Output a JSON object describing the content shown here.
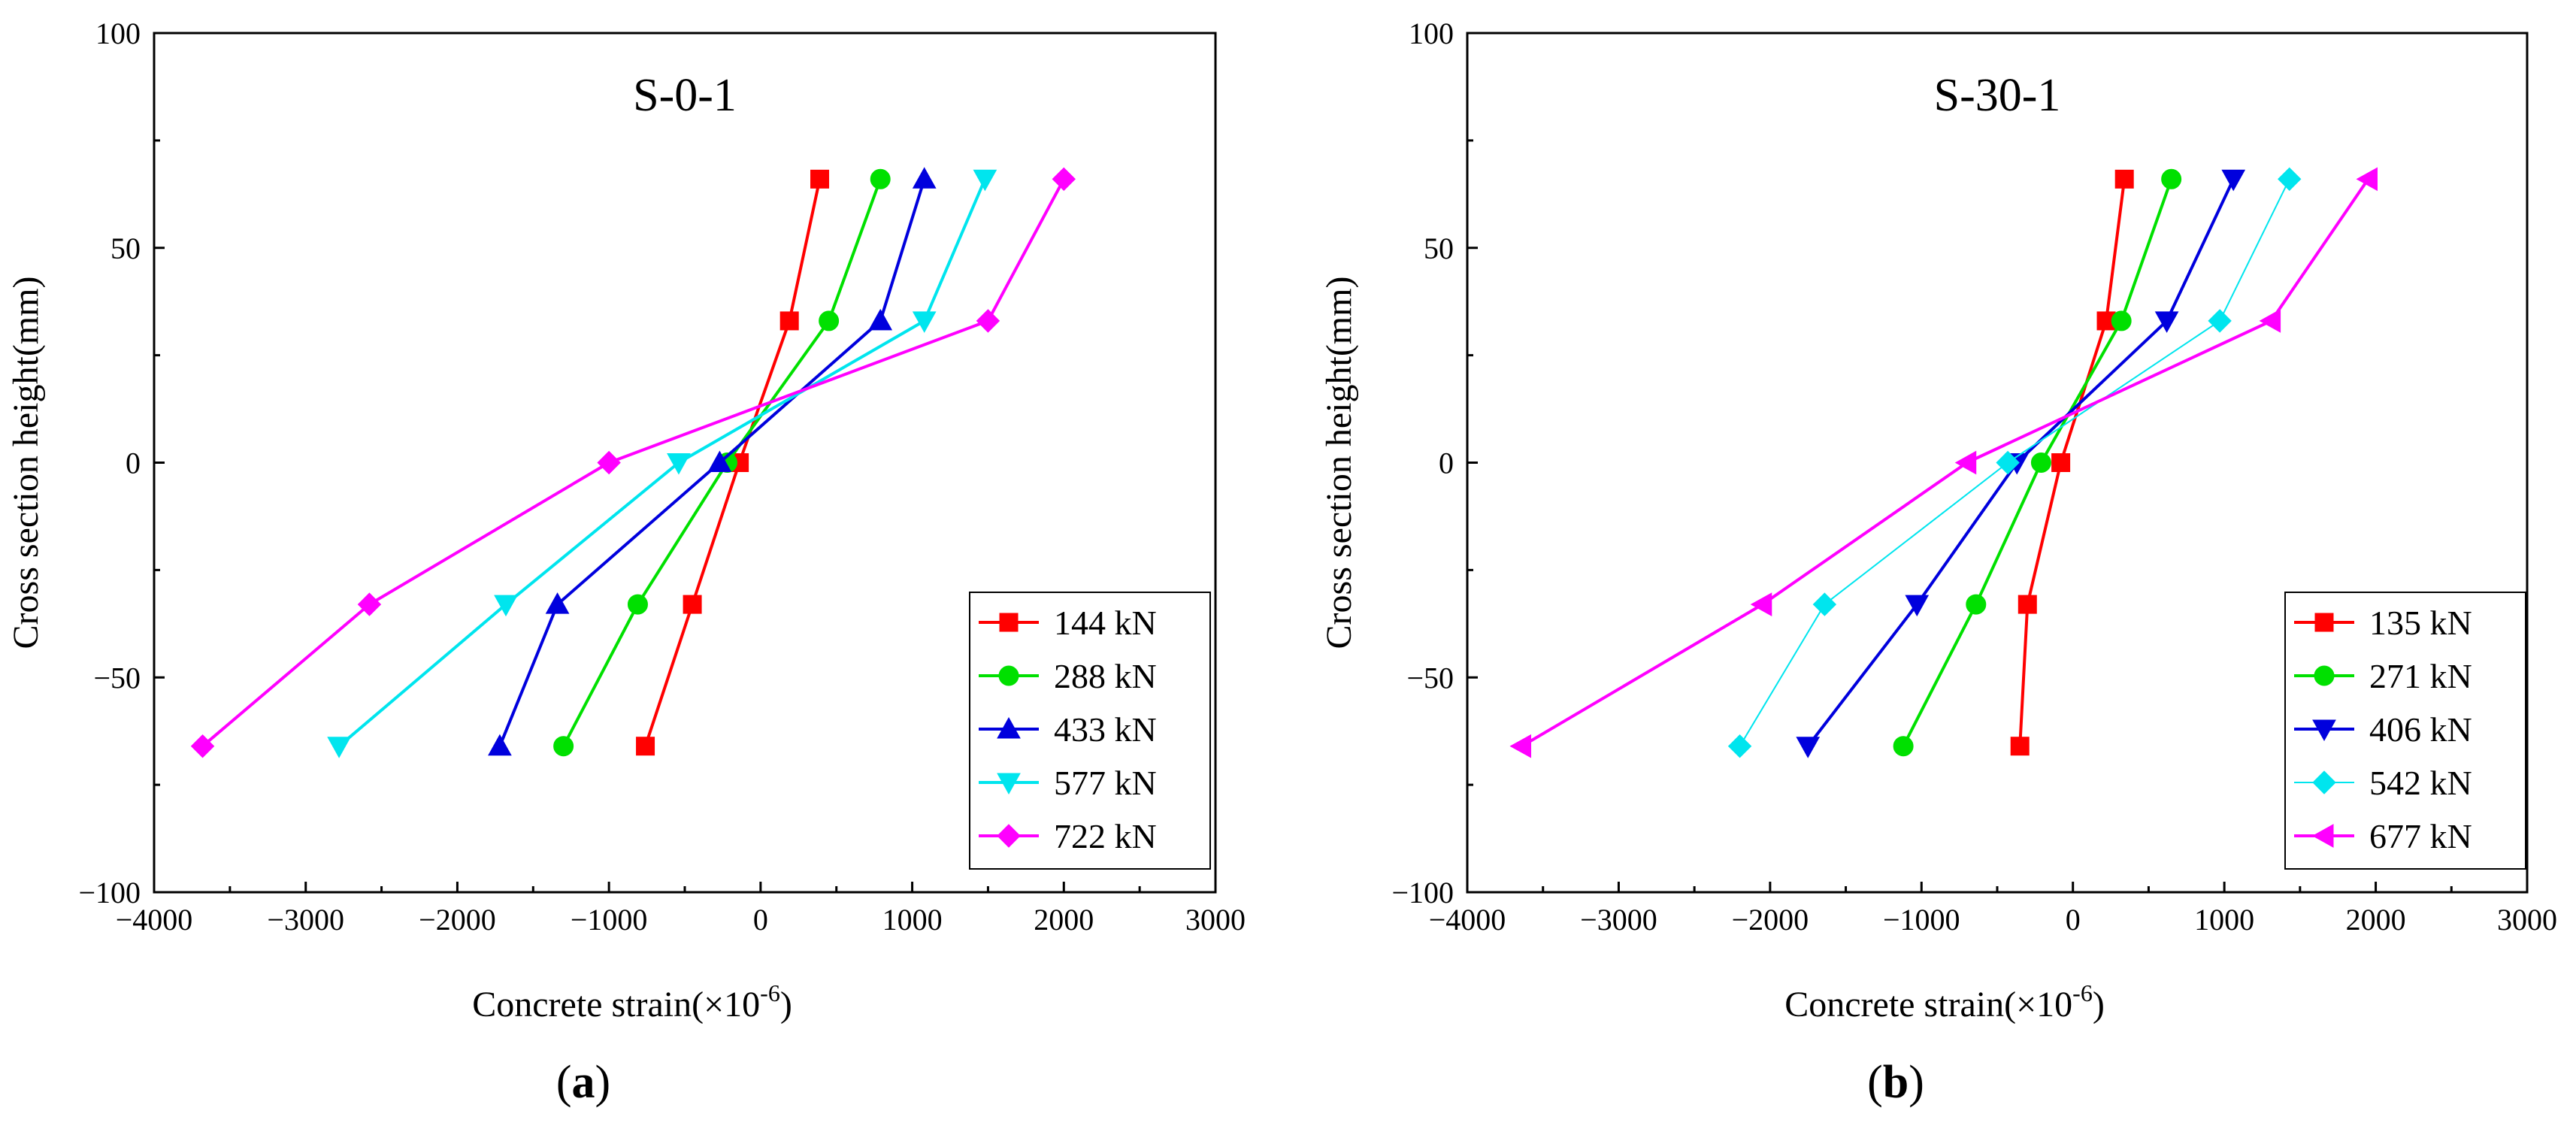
{
  "chart_data": [
    {
      "type": "line",
      "title": "S-0-1",
      "panel_label_open": "(",
      "panel_label_letter": "a",
      "panel_label_close": ")",
      "xlabel": "Concrete strain(×10",
      "xlabel_exponent": "-6",
      "xlabel_close": ")",
      "ylabel": "Cross section height(mm)",
      "xlim": [
        -4000,
        3000
      ],
      "ylim": [
        -100,
        100
      ],
      "xticks": [
        -4000,
        -3000,
        -2000,
        -1000,
        0,
        1000,
        2000,
        3000
      ],
      "yticks": [
        -100,
        -50,
        0,
        50,
        100
      ],
      "y": [
        66,
        33,
        0,
        -33,
        -66
      ],
      "legend_position": "bottom-right",
      "series": [
        {
          "name": "144 kN",
          "color": "#ff0000",
          "marker": "square",
          "x": [
            390,
            190,
            -140,
            -450,
            -760
          ],
          "thin": false
        },
        {
          "name": "288 kN",
          "color": "#00e000",
          "marker": "circle",
          "x": [
            790,
            450,
            -220,
            -810,
            -1300
          ],
          "thin": false
        },
        {
          "name": "433 kN",
          "color": "#0000dd",
          "marker": "triangle-up",
          "x": [
            1080,
            790,
            -270,
            -1340,
            -1720
          ],
          "thin": false
        },
        {
          "name": "577 kN",
          "color": "#00e5ee",
          "marker": "triangle-down",
          "x": [
            1480,
            1080,
            -540,
            -1680,
            -2780
          ],
          "thin": false
        },
        {
          "name": "722 kN",
          "color": "#ff00ff",
          "marker": "diamond",
          "x": [
            2000,
            1500,
            -1000,
            -2580,
            -3680
          ],
          "thin": false
        }
      ]
    },
    {
      "type": "line",
      "title": "S-30-1",
      "panel_label_open": "(",
      "panel_label_letter": "b",
      "panel_label_close": ")",
      "xlabel": "Concrete strain(×10",
      "xlabel_exponent": "-6",
      "xlabel_close": ")",
      "ylabel": "Cross section height(mm)",
      "xlim": [
        -4000,
        3000
      ],
      "ylim": [
        -100,
        100
      ],
      "xticks": [
        -4000,
        -3000,
        -2000,
        -1000,
        0,
        1000,
        2000,
        3000
      ],
      "yticks": [
        -100,
        -50,
        0,
        50,
        100
      ],
      "y": [
        66,
        33,
        0,
        -33,
        -66
      ],
      "legend_position": "bottom-right",
      "series": [
        {
          "name": "135 kN",
          "color": "#ff0000",
          "marker": "square",
          "x": [
            340,
            220,
            -80,
            -300,
            -350
          ],
          "thin": false
        },
        {
          "name": "271 kN",
          "color": "#00e000",
          "marker": "circle",
          "x": [
            650,
            320,
            -210,
            -640,
            -1120
          ],
          "thin": false
        },
        {
          "name": "406 kN",
          "color": "#0000dd",
          "marker": "triangle-down",
          "x": [
            1060,
            620,
            -370,
            -1030,
            -1750
          ],
          "thin": false
        },
        {
          "name": "542 kN",
          "color": "#00e5ee",
          "marker": "diamond",
          "x": [
            1430,
            970,
            -430,
            -1640,
            -2200
          ],
          "thin": true
        },
        {
          "name": "677 kN",
          "color": "#ff00ff",
          "marker": "triangle-left",
          "x": [
            1950,
            1310,
            -700,
            -2050,
            -3640
          ],
          "thin": false
        }
      ]
    }
  ]
}
